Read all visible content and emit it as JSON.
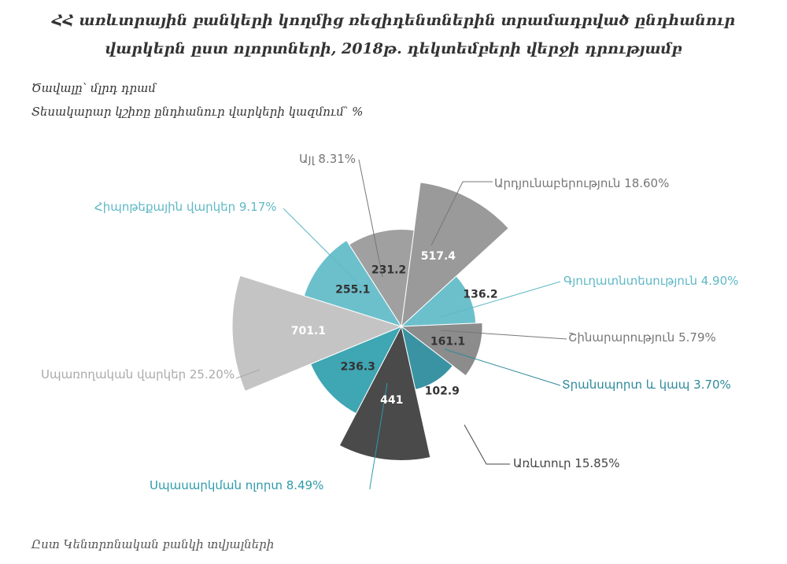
{
  "header": {
    "title_line1": "ՀՀ առևտրային բանկերի կողմից ռեզիդենտներին տրամադրված ընդհանուր",
    "title_line2": "վարկերն ըստ ոլորտների, 2018թ. դեկտեմբերի վերջի դրությամբ",
    "subtitle_volume": "Ծավալը՝ մլրդ դրամ",
    "subtitle_share": "Տեսակարար կշիռը ընդհանուր վարկերի կազմում՝ %",
    "source": "Ըստ Կենտրոնական բանկի տվյալների"
  },
  "chart_data": {
    "type": "pie",
    "variant": "polar-area",
    "categories": [
      "Արդյունաբերություն",
      "Գյուղատնտեսություն",
      "Շինարարություն",
      "Տրանսպորտ և կապ",
      "Առևտուր",
      "Սպասարկման ոլորտ",
      "Սպառողական վարկեր",
      "Հիպոթեքային վարկեր",
      "Այլ"
    ],
    "values": [
      517.4,
      136.2,
      161.1,
      102.9,
      441,
      236.3,
      701.1,
      255.1,
      231.2
    ],
    "value_labels": [
      "517.4",
      "136.2",
      "161.1",
      "102.9",
      "441",
      "236.3",
      "701.1",
      "255.1",
      "231.2"
    ],
    "shares": [
      "18.60%",
      "4.90%",
      "5.79%",
      "3.70%",
      "15.85%",
      "8.49%",
      "25.20%",
      "9.17%",
      "8.31%"
    ],
    "colors": [
      "#9a9a9a",
      "#6cc0cc",
      "#8c8c8c",
      "#3a93a3",
      "#4a4a4a",
      "#3fa6b3",
      "#c4c4c4",
      "#6cc0cc",
      "#a0a0a0"
    ],
    "label_colors": [
      "#777777",
      "#5fb8c5",
      "#777777",
      "#2e8a9b",
      "#444444",
      "#2e9aab",
      "#aaaaaa",
      "#5fb8c5",
      "#777777"
    ],
    "value_label_colors": [
      "#ffffff",
      "#333333",
      "#333333",
      "#333333",
      "#ffffff",
      "#333333",
      "#ffffff",
      "#333333",
      "#333333"
    ]
  }
}
